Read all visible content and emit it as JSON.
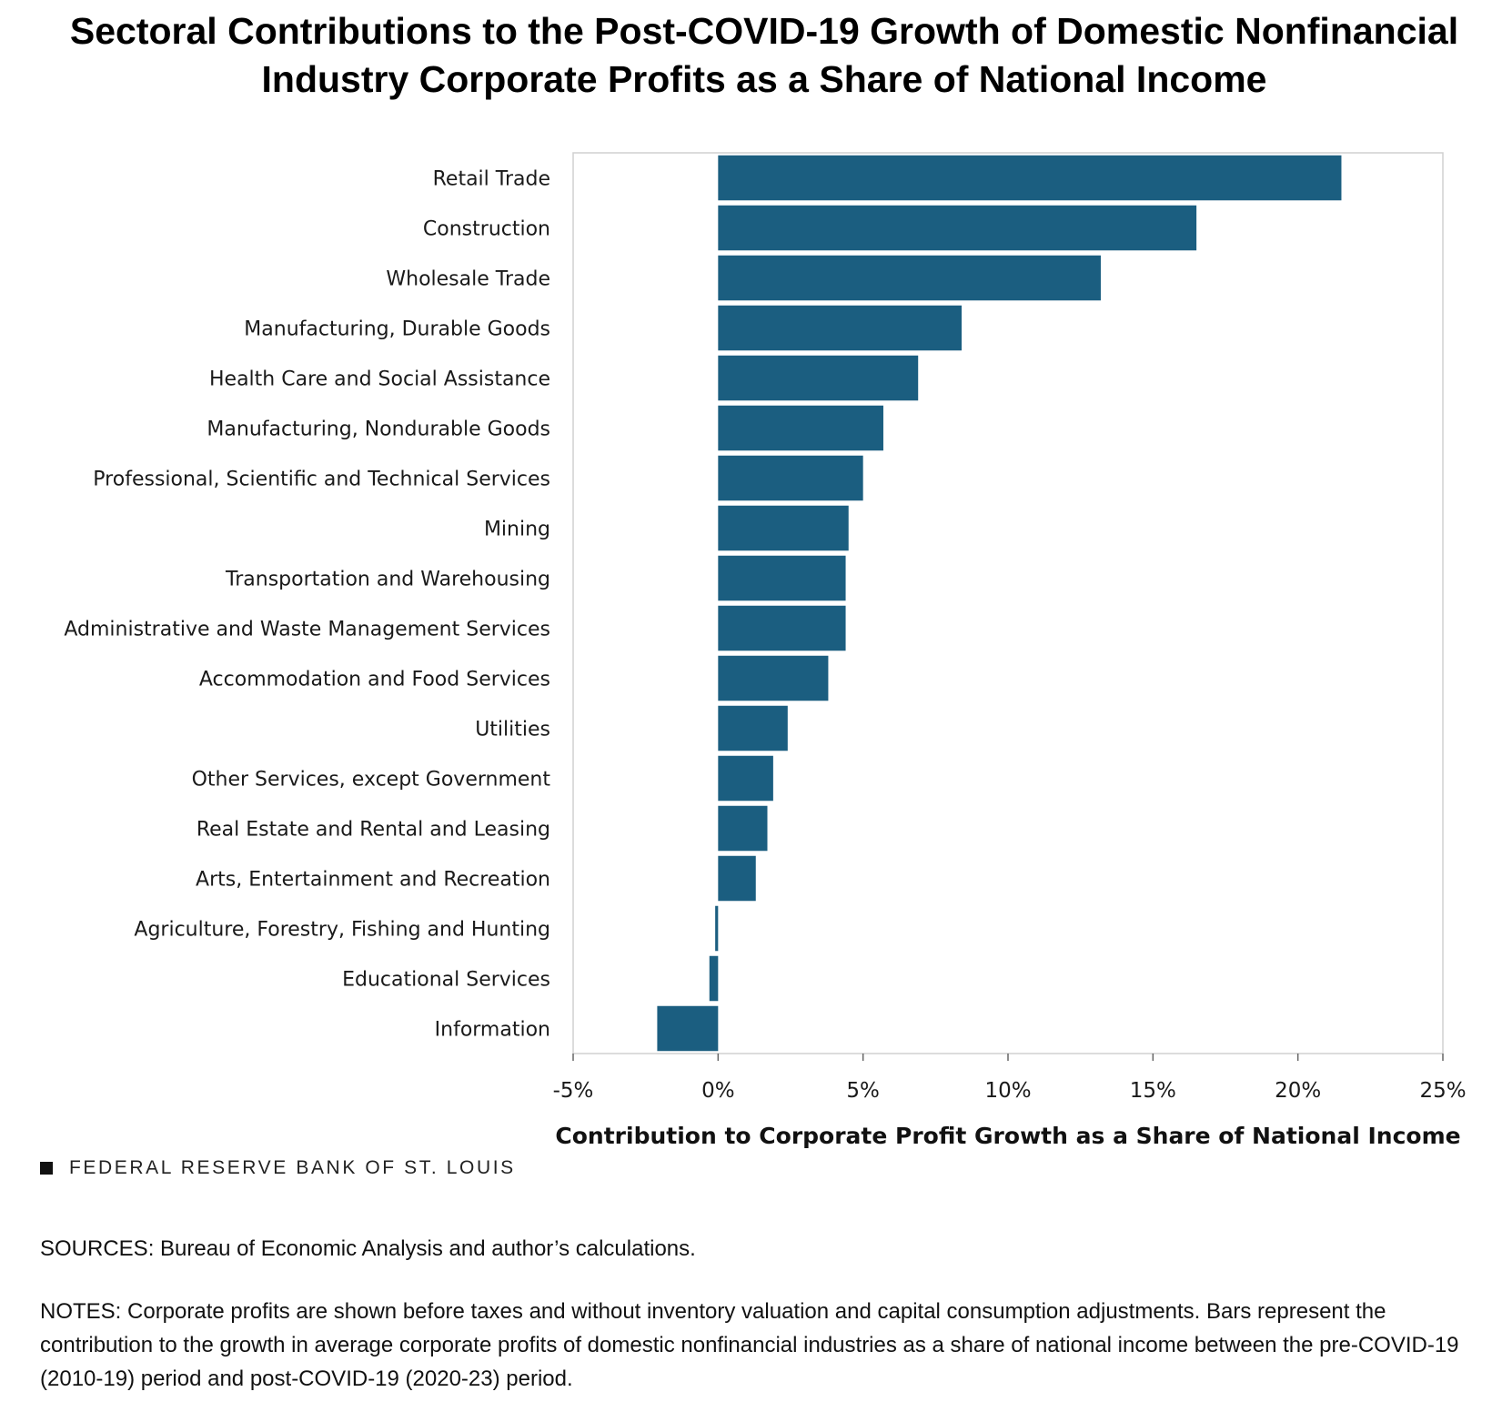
{
  "title": "Sectoral Contributions to the Post-COVID-19 Growth of Domestic Nonfinancial Industry Corporate Profits as a Share of National Income",
  "branding": "FEDERAL RESERVE BANK OF ST. LOUIS",
  "sources": "SOURCES: Bureau of Economic Analysis and author’s calculations.",
  "notes": "NOTES: Corporate profits are shown before taxes and without inventory valuation and capital consumption adjustments. Bars represent the contribution to the growth in average corporate profits of domestic nonfinancial industries as a share of national income between the pre-COVID-19 (2010-19) period and post-COVID-19 (2020-23) period.",
  "colors": {
    "bar": "#1b5e80",
    "frame": "#d0d0d0"
  },
  "chart_data": {
    "type": "bar",
    "orientation": "horizontal",
    "xlabel": "Contribution to Corporate Profit Growth as a Share of National Income",
    "xlim": [
      -5,
      25
    ],
    "xticks": [
      -5,
      0,
      5,
      10,
      15,
      20,
      25
    ],
    "xtick_labels": [
      "-5%",
      "0%",
      "5%",
      "10%",
      "15%",
      "20%",
      "25%"
    ],
    "grid": false,
    "categories": [
      "Retail Trade",
      "Construction",
      "Wholesale Trade",
      "Manufacturing, Durable Goods",
      "Health Care and Social Assistance",
      "Manufacturing, Nondurable Goods",
      "Professional, Scientific and Technical Services",
      "Mining",
      "Transportation and Warehousing",
      "Administrative and Waste Management Services",
      "Accommodation and Food Services",
      "Utilities",
      "Other Services, except Government",
      "Real Estate and Rental and Leasing",
      "Arts, Entertainment and Recreation",
      "Agriculture, Forestry, Fishing and Hunting",
      "Educational Services",
      "Information"
    ],
    "values": [
      21.5,
      16.5,
      13.2,
      8.4,
      6.9,
      5.7,
      5.0,
      4.5,
      4.4,
      4.4,
      3.8,
      2.4,
      1.9,
      1.7,
      1.3,
      -0.1,
      -0.3,
      -2.1
    ]
  }
}
